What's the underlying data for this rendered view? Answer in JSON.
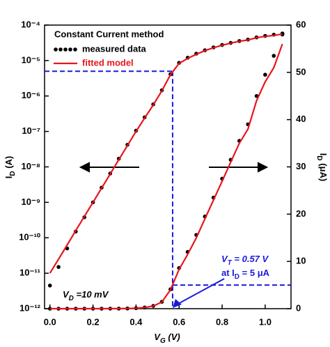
{
  "chart_data": {
    "type": "line",
    "legend_title": "Constant Current method",
    "x_label": [
      "V",
      "G",
      " (V)"
    ],
    "y_label": [
      "I",
      "D",
      " (A)"
    ],
    "y2_label": [
      "I",
      "D",
      " (μA)"
    ],
    "vt_label": [
      "V",
      "T",
      " = 0.57 V"
    ],
    "id_label": [
      "at I",
      "D",
      " = 5 μA"
    ],
    "vd_label": [
      "V",
      "D",
      " =10 mV"
    ],
    "x": [
      0,
      0.04,
      0.08,
      0.12,
      0.16,
      0.2,
      0.24,
      0.28,
      0.32,
      0.36,
      0.4,
      0.44,
      0.48,
      0.52,
      0.56,
      0.6,
      0.64,
      0.68,
      0.72,
      0.76,
      0.8,
      0.84,
      0.88,
      0.92,
      0.96,
      1.0,
      1.04,
      1.08
    ],
    "series": [
      {
        "name": "measured data",
        "color": "#000000",
        "style": "markers",
        "values": [
          4.5e-12,
          1.5e-11,
          5e-11,
          1.5e-10,
          3.8e-10,
          1e-09,
          2.6e-09,
          6.5e-09,
          1.7e-08,
          4.2e-08,
          1.05e-07,
          2.5e-07,
          5.8e-07,
          1.45e-06,
          4.1e-06,
          8.6e-06,
          1.2e-05,
          1.56e-05,
          1.95e-05,
          2.35e-05,
          2.75e-05,
          3.15e-05,
          3.55e-05,
          3.9e-05,
          4.5e-05,
          4.95e-05,
          5.35e-05,
          5.8e-05
        ],
        "y2_values": [
          0,
          0,
          0,
          0,
          0,
          0,
          0,
          0.01,
          0.02,
          0.04,
          0.1,
          0.25,
          0.58,
          1.45,
          4.1,
          8.6,
          12,
          15.6,
          19.5,
          23.5,
          27.5,
          31.5,
          35.5,
          39,
          45,
          49.5,
          53.5,
          58
        ]
      },
      {
        "name": "fitted model",
        "color": "#e8141b",
        "style": "line",
        "values": [
          1e-11,
          2.5e-11,
          6.3e-11,
          1.6e-10,
          4e-10,
          1e-09,
          2.5e-09,
          6.3e-09,
          1.6e-08,
          4e-08,
          1e-07,
          2.4e-07,
          5.6e-07,
          1.4e-06,
          4e-06,
          8.3e-06,
          1.15e-05,
          1.5e-05,
          1.9e-05,
          2.3e-05,
          2.7e-05,
          3.1e-05,
          3.5e-05,
          3.8e-05,
          4.4e-05,
          4.8e-05,
          5.1e-05,
          5.6e-05
        ],
        "y2_values": [
          0,
          0,
          0,
          0,
          0,
          0,
          0,
          0.01,
          0.02,
          0.04,
          0.1,
          0.24,
          0.56,
          1.4,
          4,
          8.3,
          11.5,
          15,
          19,
          23,
          27,
          31,
          35,
          38,
          44,
          48,
          51,
          56
        ]
      }
    ],
    "threshold": {
      "x": 0.57,
      "y": 5e-06,
      "y2": 5,
      "color": "#1a1adb"
    },
    "xlim": [
      -0.025,
      1.12
    ],
    "xticks": [
      {
        "value": 0,
        "label": "0.0"
      },
      0.2,
      0.4,
      0.6,
      0.8,
      {
        "value": 1,
        "label": "1.0"
      }
    ],
    "yscale": "log",
    "ylim": [
      1e-12,
      0.0001
    ],
    "yticks": [
      {
        "value": 1e-12,
        "label": "10⁻¹²"
      },
      {
        "value": 1e-11,
        "label": "10⁻¹¹"
      },
      {
        "value": 1e-10,
        "label": "10⁻¹⁰"
      },
      {
        "value": 1e-09,
        "label": "10⁻⁹"
      },
      {
        "value": 1e-08,
        "label": "10⁻⁸"
      },
      {
        "value": 1e-07,
        "label": "10⁻⁷"
      },
      {
        "value": 1e-06,
        "label": "10⁻⁶"
      },
      {
        "value": 1e-05,
        "label": "10⁻⁵"
      },
      {
        "value": 0.0001,
        "label": "10⁻⁴"
      }
    ],
    "y2lim": [
      0,
      60
    ],
    "y2ticks": [
      0,
      10,
      20,
      30,
      40,
      50,
      60
    ]
  }
}
